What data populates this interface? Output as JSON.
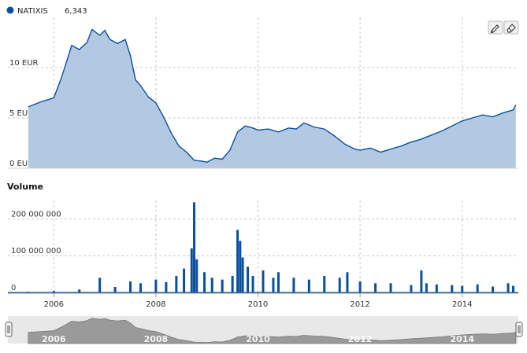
{
  "legend": {
    "series_name": "NATIXIS",
    "last_value": "6,343",
    "color": "#0a4fa0"
  },
  "tools": {
    "draw_icon": "pencil-icon",
    "erase_icon": "eraser-icon"
  },
  "colors": {
    "price_line": "#0a4fa0",
    "price_fill": "#b3c9e2",
    "volume_bar": "#0a4fa0",
    "navigator_fill": "#9a9a9a",
    "navigator_bg": "#e8e8e8"
  },
  "chart_data": [
    {
      "type": "area",
      "series": [
        {
          "name": "NATIXIS",
          "x": [
            2005.5,
            2005.75,
            2006.0,
            2006.15,
            2006.25,
            2006.35,
            2006.5,
            2006.65,
            2006.75,
            2006.9,
            2007.0,
            2007.1,
            2007.25,
            2007.4,
            2007.5,
            2007.6,
            2007.7,
            2007.85,
            2008.0,
            2008.15,
            2008.3,
            2008.45,
            2008.6,
            2008.75,
            2008.9,
            2009.0,
            2009.15,
            2009.3,
            2009.45,
            2009.6,
            2009.75,
            2009.9,
            2010.0,
            2010.2,
            2010.4,
            2010.6,
            2010.75,
            2010.9,
            2011.1,
            2011.3,
            2011.5,
            2011.7,
            2011.9,
            2012.0,
            2012.2,
            2012.4,
            2012.6,
            2012.8,
            2013.0,
            2013.2,
            2013.4,
            2013.6,
            2013.8,
            2014.0,
            2014.2,
            2014.4,
            2014.6,
            2014.8,
            2015.0,
            2015.05
          ],
          "values": [
            6.1,
            6.6,
            7.0,
            9.0,
            10.6,
            12.2,
            11.8,
            12.5,
            13.8,
            13.2,
            13.7,
            12.8,
            12.4,
            12.8,
            11.2,
            8.8,
            8.2,
            7.1,
            6.5,
            5.1,
            3.5,
            2.2,
            1.6,
            0.8,
            0.7,
            0.6,
            1.0,
            0.9,
            1.8,
            3.6,
            4.2,
            4.0,
            3.8,
            3.9,
            3.6,
            4.0,
            3.9,
            4.5,
            4.1,
            3.9,
            3.2,
            2.4,
            1.9,
            1.8,
            2.0,
            1.6,
            1.9,
            2.2,
            2.6,
            2.9,
            3.3,
            3.7,
            4.2,
            4.7,
            5.0,
            5.3,
            5.1,
            5.5,
            5.8,
            6.3
          ]
        }
      ],
      "yticks": [
        "0 EUR",
        "5 EUR",
        "10 EUR"
      ],
      "ylim": [
        0,
        15
      ],
      "xlim": [
        2005.1,
        2015.1
      ],
      "grid": true
    },
    {
      "type": "bar",
      "title": "Volume",
      "series": [
        {
          "name": "Volume",
          "x": [
            2005.5,
            2006.0,
            2006.5,
            2006.9,
            2007.2,
            2007.5,
            2007.7,
            2008.0,
            2008.2,
            2008.4,
            2008.55,
            2008.7,
            2008.75,
            2008.8,
            2008.95,
            2009.1,
            2009.3,
            2009.5,
            2009.6,
            2009.65,
            2009.7,
            2009.8,
            2009.9,
            2010.1,
            2010.3,
            2010.4,
            2010.7,
            2011.0,
            2011.3,
            2011.6,
            2011.75,
            2012.0,
            2012.3,
            2012.6,
            2013.0,
            2013.2,
            2013.3,
            2013.5,
            2013.8,
            2014.0,
            2014.3,
            2014.6,
            2014.9,
            2015.0
          ],
          "values": [
            2000000,
            4000000,
            8000000,
            40000000,
            15000000,
            30000000,
            25000000,
            35000000,
            28000000,
            45000000,
            65000000,
            120000000,
            245000000,
            90000000,
            55000000,
            40000000,
            35000000,
            45000000,
            170000000,
            140000000,
            95000000,
            70000000,
            45000000,
            60000000,
            40000000,
            55000000,
            40000000,
            35000000,
            45000000,
            40000000,
            55000000,
            30000000,
            25000000,
            25000000,
            20000000,
            60000000,
            25000000,
            22000000,
            20000000,
            18000000,
            22000000,
            16000000,
            25000000,
            18000000
          ]
        }
      ],
      "yticks": [
        "0",
        "100 000 000",
        "200 000 000"
      ],
      "ylim": [
        0,
        250000000
      ],
      "xticks": [
        "2006",
        "2008",
        "2010",
        "2012",
        "2014"
      ],
      "xlim": [
        2005.1,
        2015.1
      ],
      "grid": true
    }
  ],
  "navigator": {
    "labels": [
      "2006",
      "2008",
      "2010",
      "2012",
      "2014"
    ],
    "handle_left": "handle-icon",
    "handle_right": "handle-icon"
  }
}
